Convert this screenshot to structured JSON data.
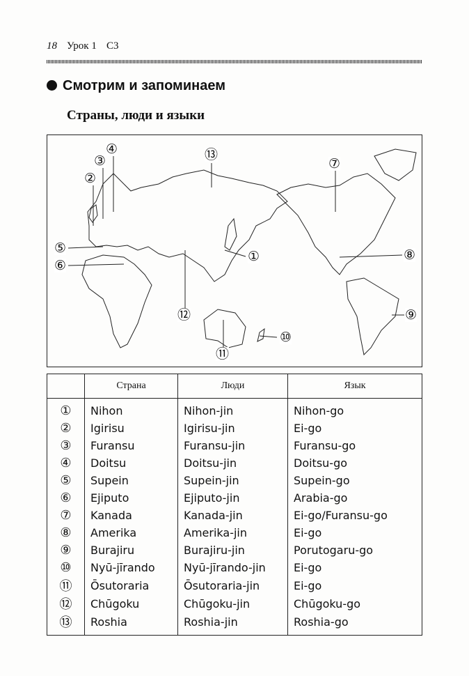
{
  "header": {
    "page_number": "18",
    "lesson": "Урок 1",
    "section_code": "C3"
  },
  "section_title": "Смотрим и запоминаем",
  "subtitle": "Страны, люди и языки",
  "map": {
    "labels": [
      "①",
      "②",
      "③",
      "④",
      "⑤",
      "⑥",
      "⑦",
      "⑧",
      "⑨",
      "⑩",
      "⑪",
      "⑫",
      "⑬"
    ]
  },
  "table": {
    "columns": [
      "",
      "Страна",
      "Люди",
      "Язык"
    ],
    "rows": [
      [
        "①",
        "Nihon",
        "Nihon-jin",
        "Nihon-go"
      ],
      [
        "②",
        "Igirisu",
        "Igirisu-jin",
        "Ei-go"
      ],
      [
        "③",
        "Furansu",
        "Furansu-jin",
        "Furansu-go"
      ],
      [
        "④",
        "Doitsu",
        "Doitsu-jin",
        "Doitsu-go"
      ],
      [
        "⑤",
        "Supein",
        "Supein-jin",
        "Supein-go"
      ],
      [
        "⑥",
        "Ejiputo",
        "Ejiputo-jin",
        "Arabia-go"
      ],
      [
        "⑦",
        "Kanada",
        "Kanada-jin",
        "Ei-go/Furansu-go"
      ],
      [
        "⑧",
        "Amerika",
        "Amerika-jin",
        "Ei-go"
      ],
      [
        "⑨",
        "Burajiru",
        "Burajiru-jin",
        "Porutogaru-go"
      ],
      [
        "⑩",
        "Nyū-jīrando",
        "Nyū-jīrando-jin",
        "Ei-go"
      ],
      [
        "⑪",
        "Ōsutoraria",
        "Ōsutoraria-jin",
        "Ei-go"
      ],
      [
        "⑫",
        "Chūgoku",
        "Chūgoku-jin",
        "Chūgoku-go"
      ],
      [
        "⑬",
        "Roshia",
        "Roshia-jin",
        "Roshia-go"
      ]
    ]
  }
}
